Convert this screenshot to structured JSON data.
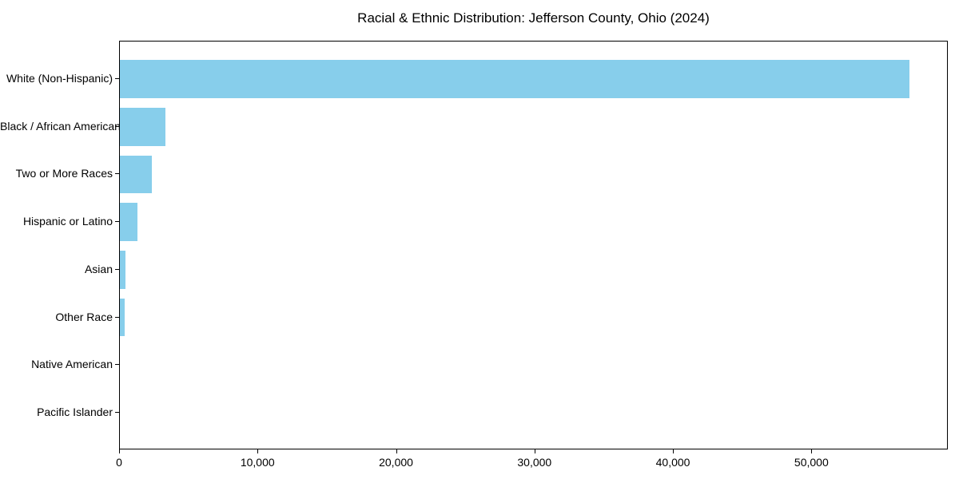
{
  "title": "Racial & Ethnic Distribution: Jefferson County, Ohio (2024)",
  "chart_data": {
    "type": "bar",
    "orientation": "horizontal",
    "title": "Racial & Ethnic Distribution: Jefferson County, Ohio (2024)",
    "xlabel": "",
    "ylabel": "",
    "categories": [
      "White (Non-Hispanic)",
      "Black / African American",
      "Two or More Races",
      "Hispanic or Latino",
      "Asian",
      "Other Race",
      "Native American",
      "Pacific Islander"
    ],
    "values": [
      57000,
      3300,
      2300,
      1250,
      400,
      330,
      0,
      0
    ],
    "xlim": [
      0,
      59850
    ],
    "x_ticks": [
      0,
      10000,
      20000,
      30000,
      40000,
      50000
    ],
    "x_tick_labels": [
      "0",
      "10,000",
      "20,000",
      "30,000",
      "40,000",
      "50,000"
    ],
    "bar_color": "#87CEEB",
    "grid": false,
    "legend": false
  },
  "colors": {
    "bar": "#87CEEB",
    "background": "#ffffff",
    "spine": "#000000",
    "text": "#000000"
  }
}
